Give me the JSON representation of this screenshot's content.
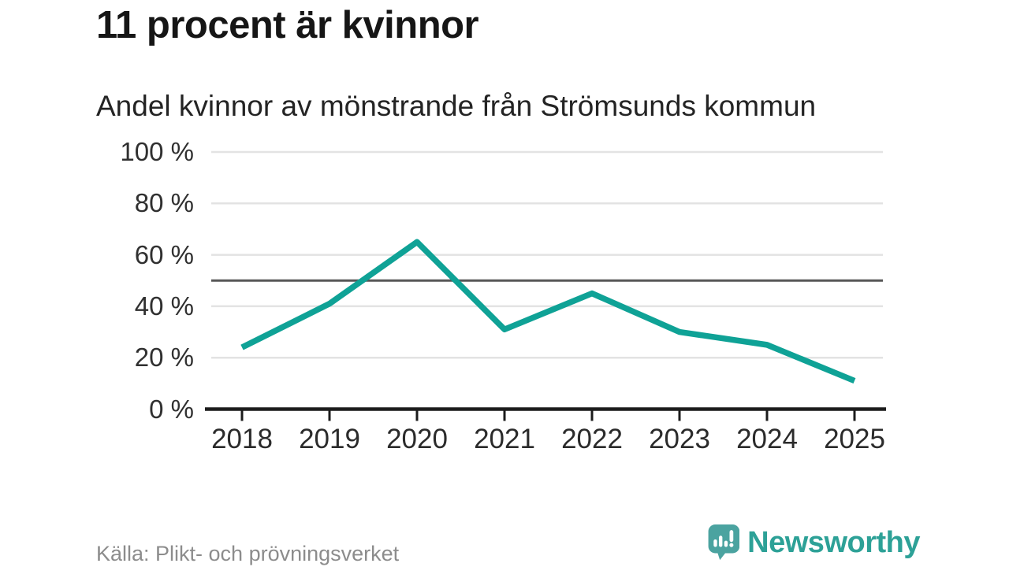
{
  "header": {
    "title": "11 procent är kvinnor",
    "subtitle": "Andel kvinnor av mönstrande från Strömsunds kommun"
  },
  "footer": {
    "source": "Källa: Plikt- och prövningsverket",
    "brand": "Newsworthy"
  },
  "colors": {
    "line": "#0fa296",
    "grid": "#e3e3e3",
    "reference_line": "#575757",
    "axis": "#1c1c1c",
    "logo_bubble": "#4ba3a0",
    "brand_text": "#2da197"
  },
  "chart_data": {
    "type": "line",
    "title": "11 procent är kvinnor",
    "subtitle": "Andel kvinnor av mönstrande från Strömsunds kommun",
    "categories": [
      "2018",
      "2019",
      "2020",
      "2021",
      "2022",
      "2023",
      "2024",
      "2025"
    ],
    "values": [
      24,
      41,
      65,
      31,
      45,
      30,
      25,
      11
    ],
    "series_name": "Andel kvinnor av mönstrande (%)",
    "ylim": [
      0,
      100
    ],
    "yticks": [
      0,
      20,
      40,
      60,
      80,
      100
    ],
    "ytick_labels": [
      "0 %",
      "20 %",
      "40 %",
      "60 %",
      "80 %",
      "100 %"
    ],
    "reference_line": 50,
    "grid": true,
    "legend": false,
    "xlabel": "",
    "ylabel": ""
  }
}
